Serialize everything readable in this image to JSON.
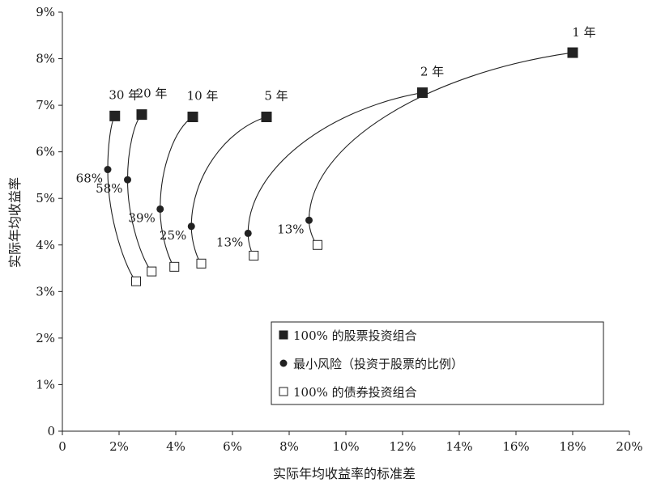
{
  "chart_data": {
    "type": "line",
    "title": "",
    "xlabel": "实际年均收益率的标准差",
    "ylabel": "实际年均收益率",
    "xlim": [
      0,
      20
    ],
    "ylim": [
      0,
      9
    ],
    "x_ticks": [
      "0",
      "2%",
      "4%",
      "6%",
      "8%",
      "10%",
      "12%",
      "14%",
      "16%",
      "18%",
      "20%"
    ],
    "y_ticks": [
      "0",
      "1%",
      "2%",
      "3%",
      "4%",
      "5%",
      "6%",
      "7%",
      "8%",
      "9%"
    ],
    "grid": false,
    "legend_position": "bottom-right",
    "legend": {
      "stocks": "100% 的股票投资组合",
      "minrisk": "最小风险（投资于股票的比例）",
      "bonds": "100% 的债券投资组合"
    },
    "series": [
      {
        "name": "1 年",
        "stocks": [
          18.0,
          8.13
        ],
        "minrisk": [
          8.7,
          4.53
        ],
        "bonds": [
          9.0,
          4.0
        ],
        "min_label": "13%"
      },
      {
        "name": "2 年",
        "stocks": [
          12.7,
          7.27
        ],
        "minrisk": [
          6.55,
          4.25
        ],
        "bonds": [
          6.75,
          3.77
        ],
        "min_label": "13%"
      },
      {
        "name": "5 年",
        "stocks": [
          7.2,
          6.75
        ],
        "minrisk": [
          4.55,
          4.4
        ],
        "bonds": [
          4.9,
          3.6
        ],
        "min_label": "25%"
      },
      {
        "name": "10 年",
        "stocks": [
          4.6,
          6.75
        ],
        "minrisk": [
          3.45,
          4.77
        ],
        "bonds": [
          3.95,
          3.53
        ],
        "min_label": "39%"
      },
      {
        "name": "20 年",
        "stocks": [
          2.8,
          6.8
        ],
        "minrisk": [
          2.3,
          5.4
        ],
        "bonds": [
          3.15,
          3.43
        ],
        "min_label": "58%"
      },
      {
        "name": "30 年",
        "stocks": [
          1.85,
          6.77
        ],
        "minrisk": [
          1.6,
          5.62
        ],
        "bonds": [
          2.6,
          3.22
        ],
        "min_label": "68%"
      }
    ]
  }
}
